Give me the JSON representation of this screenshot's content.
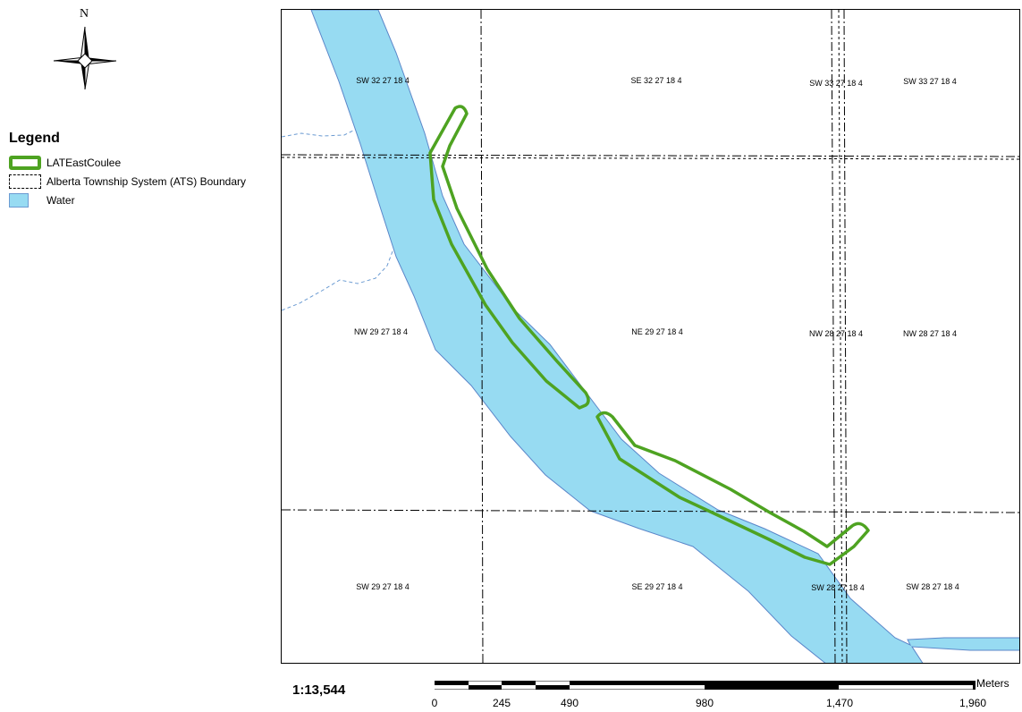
{
  "north_label": "N",
  "legend": {
    "title": "Legend",
    "items": [
      {
        "label": "LATEastCoulee",
        "symbol": "green-outline",
        "color": "#4ea321"
      },
      {
        "label": "Alberta Township System (ATS) Boundary",
        "symbol": "dashed-box",
        "color": "#000000"
      },
      {
        "label": "Water",
        "symbol": "filled-box",
        "color": "#97dbf2"
      }
    ]
  },
  "parcels": [
    {
      "label": "SW 32 27 18 4"
    },
    {
      "label": "SE 32 27 18 4"
    },
    {
      "label": "SW 33 27 18 4"
    },
    {
      "label": "SW 33 27 18 4"
    },
    {
      "label": "NW 29 27 18 4"
    },
    {
      "label": "NE 29 27 18 4"
    },
    {
      "label": "NW 28 27 18 4"
    },
    {
      "label": "NW 28 27 18 4"
    },
    {
      "label": "SW 29 27 18 4"
    },
    {
      "label": "SE 29 27 18 4"
    },
    {
      "label": "SW 28 27 18 4"
    },
    {
      "label": "SW 28 27 18 4"
    }
  ],
  "scale": {
    "ratio": "1:13,544",
    "unit": "Meters",
    "ticks": [
      "0",
      "245",
      "490",
      "980",
      "1,470",
      "1,960"
    ]
  },
  "colors": {
    "water": "#97dbf2",
    "water_edge": "#5b86c9",
    "project": "#4ea321",
    "boundary": "#000000"
  }
}
